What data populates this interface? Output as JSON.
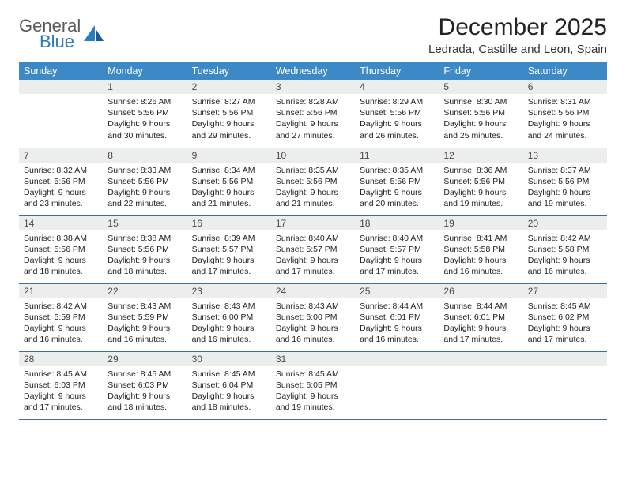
{
  "brand": {
    "word1": "General",
    "word2": "Blue"
  },
  "title": "December 2025",
  "location": "Ledrada, Castille and Leon, Spain",
  "dayHeaders": [
    "Sunday",
    "Monday",
    "Tuesday",
    "Wednesday",
    "Thursday",
    "Friday",
    "Saturday"
  ],
  "colors": {
    "headerBg": "#3d89c6",
    "headerText": "#ffffff",
    "dayStrip": "#eceded",
    "rowBorder": "#3d6fa3",
    "logoAccent": "#2b7bbf",
    "logoGray": "#5a5a5a"
  },
  "startWeekday": 1,
  "days": [
    {
      "n": 1,
      "sr": "8:26 AM",
      "ss": "5:56 PM",
      "dl": "9 hours and 30 minutes."
    },
    {
      "n": 2,
      "sr": "8:27 AM",
      "ss": "5:56 PM",
      "dl": "9 hours and 29 minutes."
    },
    {
      "n": 3,
      "sr": "8:28 AM",
      "ss": "5:56 PM",
      "dl": "9 hours and 27 minutes."
    },
    {
      "n": 4,
      "sr": "8:29 AM",
      "ss": "5:56 PM",
      "dl": "9 hours and 26 minutes."
    },
    {
      "n": 5,
      "sr": "8:30 AM",
      "ss": "5:56 PM",
      "dl": "9 hours and 25 minutes."
    },
    {
      "n": 6,
      "sr": "8:31 AM",
      "ss": "5:56 PM",
      "dl": "9 hours and 24 minutes."
    },
    {
      "n": 7,
      "sr": "8:32 AM",
      "ss": "5:56 PM",
      "dl": "9 hours and 23 minutes."
    },
    {
      "n": 8,
      "sr": "8:33 AM",
      "ss": "5:56 PM",
      "dl": "9 hours and 22 minutes."
    },
    {
      "n": 9,
      "sr": "8:34 AM",
      "ss": "5:56 PM",
      "dl": "9 hours and 21 minutes."
    },
    {
      "n": 10,
      "sr": "8:35 AM",
      "ss": "5:56 PM",
      "dl": "9 hours and 21 minutes."
    },
    {
      "n": 11,
      "sr": "8:35 AM",
      "ss": "5:56 PM",
      "dl": "9 hours and 20 minutes."
    },
    {
      "n": 12,
      "sr": "8:36 AM",
      "ss": "5:56 PM",
      "dl": "9 hours and 19 minutes."
    },
    {
      "n": 13,
      "sr": "8:37 AM",
      "ss": "5:56 PM",
      "dl": "9 hours and 19 minutes."
    },
    {
      "n": 14,
      "sr": "8:38 AM",
      "ss": "5:56 PM",
      "dl": "9 hours and 18 minutes."
    },
    {
      "n": 15,
      "sr": "8:38 AM",
      "ss": "5:56 PM",
      "dl": "9 hours and 18 minutes."
    },
    {
      "n": 16,
      "sr": "8:39 AM",
      "ss": "5:57 PM",
      "dl": "9 hours and 17 minutes."
    },
    {
      "n": 17,
      "sr": "8:40 AM",
      "ss": "5:57 PM",
      "dl": "9 hours and 17 minutes."
    },
    {
      "n": 18,
      "sr": "8:40 AM",
      "ss": "5:57 PM",
      "dl": "9 hours and 17 minutes."
    },
    {
      "n": 19,
      "sr": "8:41 AM",
      "ss": "5:58 PM",
      "dl": "9 hours and 16 minutes."
    },
    {
      "n": 20,
      "sr": "8:42 AM",
      "ss": "5:58 PM",
      "dl": "9 hours and 16 minutes."
    },
    {
      "n": 21,
      "sr": "8:42 AM",
      "ss": "5:59 PM",
      "dl": "9 hours and 16 minutes."
    },
    {
      "n": 22,
      "sr": "8:43 AM",
      "ss": "5:59 PM",
      "dl": "9 hours and 16 minutes."
    },
    {
      "n": 23,
      "sr": "8:43 AM",
      "ss": "6:00 PM",
      "dl": "9 hours and 16 minutes."
    },
    {
      "n": 24,
      "sr": "8:43 AM",
      "ss": "6:00 PM",
      "dl": "9 hours and 16 minutes."
    },
    {
      "n": 25,
      "sr": "8:44 AM",
      "ss": "6:01 PM",
      "dl": "9 hours and 16 minutes."
    },
    {
      "n": 26,
      "sr": "8:44 AM",
      "ss": "6:01 PM",
      "dl": "9 hours and 17 minutes."
    },
    {
      "n": 27,
      "sr": "8:45 AM",
      "ss": "6:02 PM",
      "dl": "9 hours and 17 minutes."
    },
    {
      "n": 28,
      "sr": "8:45 AM",
      "ss": "6:03 PM",
      "dl": "9 hours and 17 minutes."
    },
    {
      "n": 29,
      "sr": "8:45 AM",
      "ss": "6:03 PM",
      "dl": "9 hours and 18 minutes."
    },
    {
      "n": 30,
      "sr": "8:45 AM",
      "ss": "6:04 PM",
      "dl": "9 hours and 18 minutes."
    },
    {
      "n": 31,
      "sr": "8:45 AM",
      "ss": "6:05 PM",
      "dl": "9 hours and 19 minutes."
    }
  ],
  "labels": {
    "sunrise": "Sunrise:",
    "sunset": "Sunset:",
    "daylight": "Daylight:"
  }
}
